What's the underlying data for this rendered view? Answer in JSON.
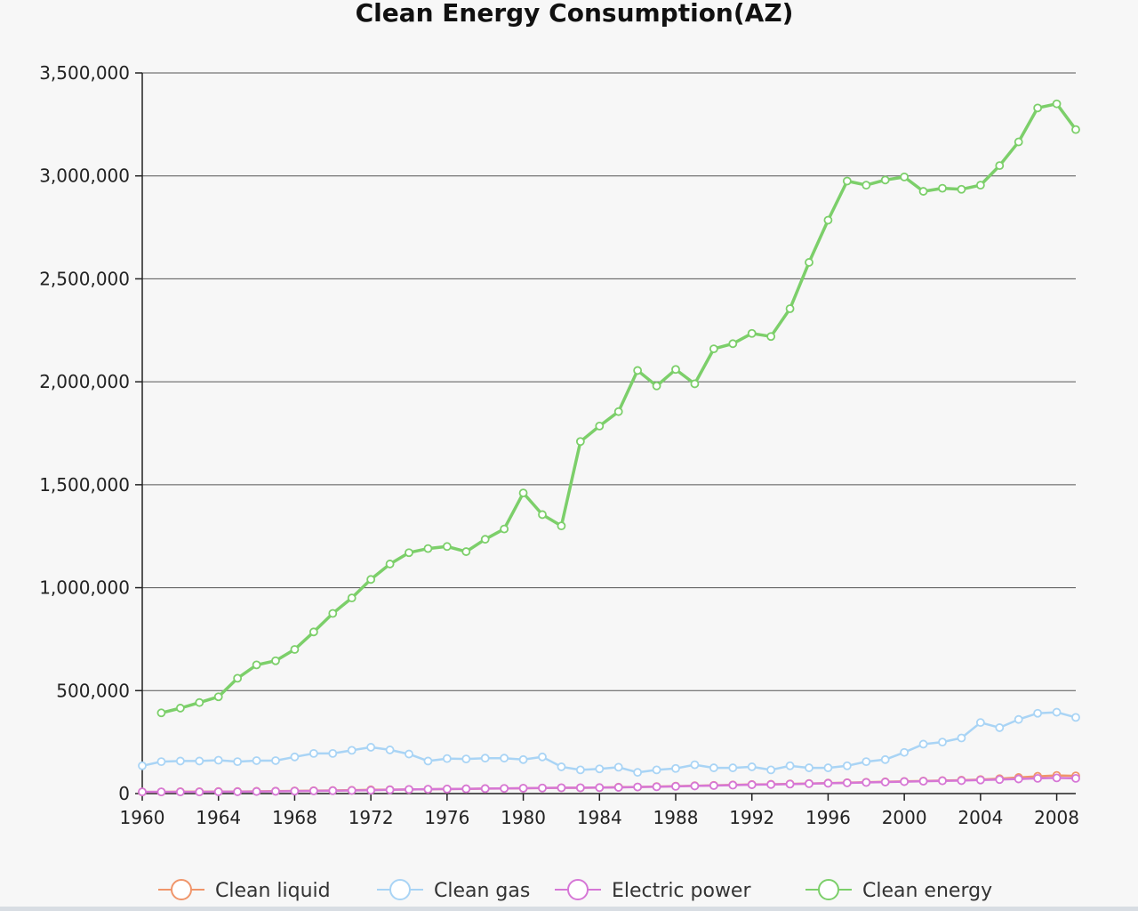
{
  "chart_data": {
    "type": "line",
    "title": "Clean Energy Consumption(AZ)",
    "xlabel": "",
    "ylabel": "",
    "xlim": [
      1960,
      2009
    ],
    "ylim": [
      0,
      3500000
    ],
    "y_ticks": [
      0,
      500000,
      1000000,
      1500000,
      2000000,
      2500000,
      3000000,
      3500000
    ],
    "y_tick_labels": [
      "0",
      "500,000",
      "1,000,000",
      "1,500,000",
      "2,000,000",
      "2,500,000",
      "3,000,000",
      "3,500,000"
    ],
    "x_ticks": [
      1960,
      1964,
      1968,
      1972,
      1976,
      1980,
      1984,
      1988,
      1992,
      1996,
      2000,
      2004,
      2008
    ],
    "x_tick_labels": [
      "1960",
      "1964",
      "1968",
      "1972",
      "1976",
      "1980",
      "1984",
      "1988",
      "1992",
      "1996",
      "2000",
      "2004",
      "2008"
    ],
    "grid": true,
    "legend_position": "bottom",
    "x": [
      1960,
      1961,
      1962,
      1963,
      1964,
      1965,
      1966,
      1967,
      1968,
      1969,
      1970,
      1971,
      1972,
      1973,
      1974,
      1975,
      1976,
      1977,
      1978,
      1979,
      1980,
      1981,
      1982,
      1983,
      1984,
      1985,
      1986,
      1987,
      1988,
      1989,
      1990,
      1991,
      1992,
      1993,
      1994,
      1995,
      1996,
      1997,
      1998,
      1999,
      2000,
      2001,
      2002,
      2003,
      2004,
      2005,
      2006,
      2007,
      2008,
      2009
    ],
    "series": [
      {
        "name": "Clean liquid",
        "color": "#f0956a",
        "values": [
          8000,
          8000,
          9000,
          9000,
          10000,
          10000,
          11000,
          12000,
          13000,
          14000,
          15000,
          16000,
          18000,
          19000,
          20000,
          21000,
          22000,
          23000,
          24000,
          25000,
          26000,
          27000,
          28000,
          28000,
          29000,
          31000,
          32000,
          34000,
          36000,
          38000,
          40000,
          42000,
          44000,
          45000,
          47000,
          49000,
          51000,
          53000,
          55000,
          57000,
          59000,
          61000,
          63000,
          65000,
          68000,
          72000,
          78000,
          84000,
          88000,
          86000
        ]
      },
      {
        "name": "Clean gas",
        "color": "#a9d4f5",
        "values": [
          135000,
          155000,
          158000,
          158000,
          162000,
          155000,
          160000,
          160000,
          178000,
          195000,
          195000,
          210000,
          225000,
          212000,
          192000,
          158000,
          170000,
          168000,
          172000,
          172000,
          165000,
          178000,
          130000,
          115000,
          120000,
          128000,
          103000,
          115000,
          122000,
          140000,
          125000,
          125000,
          130000,
          115000,
          135000,
          125000,
          125000,
          135000,
          155000,
          165000,
          200000,
          240000,
          250000,
          270000,
          345000,
          320000,
          360000,
          390000,
          395000,
          370000
        ]
      },
      {
        "name": "Electric power",
        "color": "#d677d6",
        "values": [
          8000,
          8000,
          8000,
          8000,
          9000,
          9000,
          10000,
          11000,
          12000,
          13000,
          14000,
          15000,
          16000,
          18000,
          20000,
          21000,
          22000,
          23000,
          24000,
          25000,
          26000,
          27000,
          28000,
          28000,
          29000,
          30000,
          32000,
          33000,
          35000,
          37000,
          39000,
          41000,
          43000,
          44000,
          46000,
          48000,
          50000,
          52000,
          54000,
          56000,
          58000,
          60000,
          62000,
          63000,
          66000,
          68000,
          71000,
          74000,
          76000,
          74000
        ]
      },
      {
        "name": "Clean energy",
        "color": "#7ccf6a",
        "values": [
          null,
          392000,
          415000,
          442000,
          470000,
          560000,
          625000,
          645000,
          700000,
          785000,
          875000,
          950000,
          1040000,
          1115000,
          1170000,
          1190000,
          1200000,
          1175000,
          1235000,
          1285000,
          1460000,
          1355000,
          1300000,
          1710000,
          1785000,
          1855000,
          2055000,
          1980000,
          2060000,
          1990000,
          2160000,
          2185000,
          2235000,
          2220000,
          2355000,
          2580000,
          2785000,
          2975000,
          2955000,
          2980000,
          2995000,
          2925000,
          2940000,
          2935000,
          2955000,
          3050000,
          3165000,
          3330000,
          3350000,
          3225000
        ]
      }
    ]
  }
}
